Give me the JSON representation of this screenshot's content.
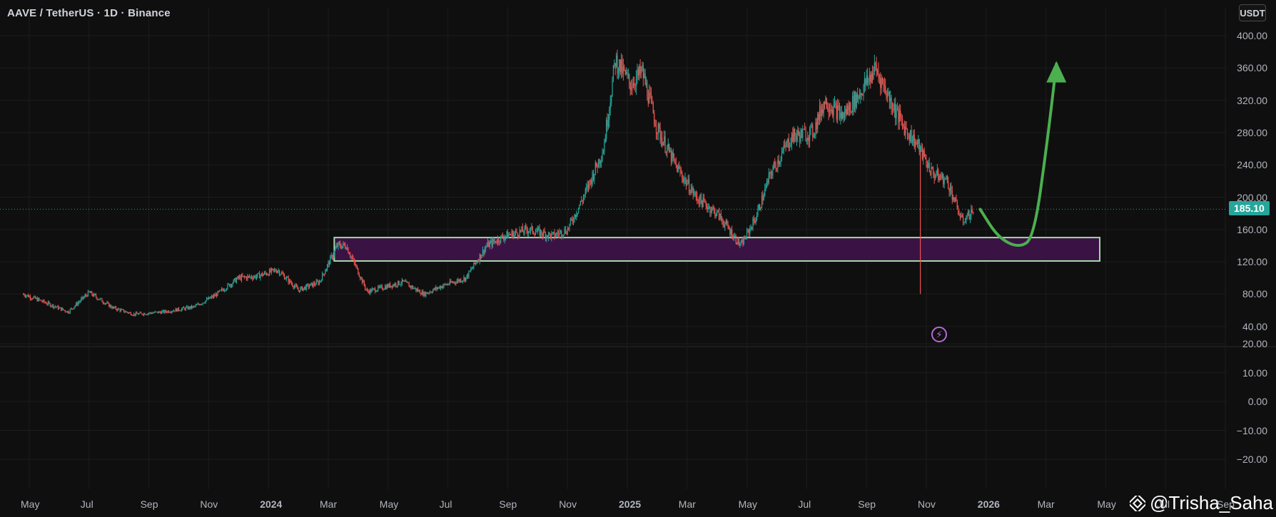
{
  "header": {
    "symbol_title": "AAVE / TetherUS · 1D · Binance",
    "currency_button": "USDT"
  },
  "price_tag": "185.10",
  "watermark": "@Trisha_Saha",
  "colors": {
    "up": "#26a69a",
    "down": "#ef5350",
    "zone_fill": "#3a1344",
    "zone_border": "#a5d6a7",
    "arrow": "#4caf50",
    "last_price_line": "#26a69a"
  },
  "icons": {
    "lightning": "lightning-icon",
    "brand": "binance-diamond-icon"
  },
  "chart_data": {
    "type": "candlestick",
    "grid": true,
    "price_axis": {
      "ticks": [
        "400.00",
        "360.00",
        "320.00",
        "280.00",
        "240.00",
        "200.00",
        "160.00",
        "120.00",
        "80.00",
        "40.00"
      ],
      "values": [
        400,
        360,
        320,
        280,
        240,
        200,
        160,
        120,
        80,
        40
      ]
    },
    "lower_axis": {
      "ticks": [
        "20.00",
        "10.00",
        "0.00",
        "−10.00",
        "−20.00"
      ],
      "values": [
        20,
        10,
        0,
        -10,
        -20
      ]
    },
    "time_axis": {
      "labels": [
        "May",
        "Jul",
        "Sep",
        "Nov",
        "2024",
        "Mar",
        "May",
        "Jul",
        "Sep",
        "Nov",
        "2025",
        "Mar",
        "May",
        "Jul",
        "Sep",
        "Nov",
        "2026",
        "Mar",
        "May",
        "Jul",
        "Sep"
      ],
      "bold": [
        false,
        false,
        false,
        false,
        true,
        false,
        false,
        false,
        false,
        false,
        true,
        false,
        false,
        false,
        false,
        false,
        true,
        false,
        false,
        false,
        false
      ],
      "month_index": [
        0,
        2,
        4,
        6,
        8,
        10,
        12,
        14,
        16,
        18,
        20,
        22,
        24,
        26,
        28,
        30,
        32,
        34,
        36,
        38,
        40
      ]
    },
    "last_price": 185.1,
    "price_path": [
      [
        -0.2,
        80
      ],
      [
        0.5,
        70
      ],
      [
        1.3,
        58
      ],
      [
        2.0,
        82
      ],
      [
        2.8,
        63
      ],
      [
        3.5,
        55
      ],
      [
        4.5,
        58
      ],
      [
        5.5,
        64
      ],
      [
        6.2,
        78
      ],
      [
        7.0,
        100
      ],
      [
        7.6,
        102
      ],
      [
        8.3,
        110
      ],
      [
        9.0,
        85
      ],
      [
        9.7,
        95
      ],
      [
        10.3,
        140
      ],
      [
        10.6,
        140
      ],
      [
        11.3,
        83
      ],
      [
        11.8,
        88
      ],
      [
        12.5,
        95
      ],
      [
        13.2,
        80
      ],
      [
        13.8,
        90
      ],
      [
        14.6,
        100
      ],
      [
        15.3,
        140
      ],
      [
        15.9,
        152
      ],
      [
        16.7,
        160
      ],
      [
        17.5,
        152
      ],
      [
        18.0,
        160
      ],
      [
        18.6,
        205
      ],
      [
        19.2,
        260
      ],
      [
        19.6,
        370
      ],
      [
        20.1,
        340
      ],
      [
        20.5,
        355
      ],
      [
        21.0,
        285
      ],
      [
        21.6,
        240
      ],
      [
        22.3,
        200
      ],
      [
        23.0,
        180
      ],
      [
        23.8,
        140
      ],
      [
        24.3,
        175
      ],
      [
        24.8,
        230
      ],
      [
        25.5,
        275
      ],
      [
        26.2,
        280
      ],
      [
        26.6,
        320
      ],
      [
        27.2,
        300
      ],
      [
        27.8,
        330
      ],
      [
        28.3,
        360
      ],
      [
        28.8,
        320
      ],
      [
        29.2,
        290
      ],
      [
        29.7,
        265
      ],
      [
        30.2,
        230
      ],
      [
        30.7,
        220
      ],
      [
        31.2,
        170
      ],
      [
        31.6,
        185
      ]
    ],
    "support_zone": {
      "price_low": 121,
      "price_high": 150,
      "month_start": 10.2,
      "month_end": 35.8
    },
    "projection": {
      "curve_x_months": [
        31.8,
        32.4,
        33.1,
        33.6,
        34.05,
        34.35
      ],
      "curve_y_prices": [
        185,
        150,
        137,
        150,
        270,
        365
      ]
    },
    "wicks": [
      {
        "month": 29.8,
        "low": 80
      }
    ]
  }
}
